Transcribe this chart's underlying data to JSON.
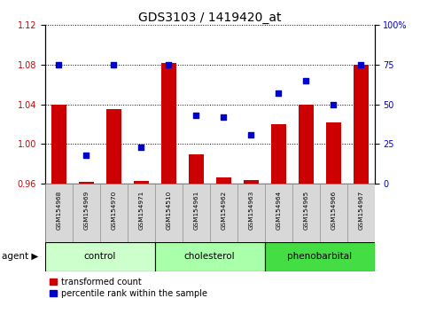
{
  "title": "GDS3103 / 1419420_at",
  "samples": [
    "GSM154968",
    "GSM154969",
    "GSM154970",
    "GSM154971",
    "GSM154510",
    "GSM154961",
    "GSM154962",
    "GSM154963",
    "GSM154964",
    "GSM154965",
    "GSM154966",
    "GSM154967"
  ],
  "groups": [
    {
      "name": "control",
      "color": "#ccffcc",
      "indices": [
        0,
        1,
        2,
        3
      ]
    },
    {
      "name": "cholesterol",
      "color": "#aaffaa",
      "indices": [
        4,
        5,
        6,
        7
      ]
    },
    {
      "name": "phenobarbital",
      "color": "#44dd44",
      "indices": [
        8,
        9,
        10,
        11
      ]
    }
  ],
  "bar_values": [
    1.04,
    0.962,
    1.035,
    0.963,
    1.082,
    0.99,
    0.966,
    0.964,
    1.02,
    1.04,
    1.022,
    1.08
  ],
  "percentile_values": [
    75,
    18,
    75,
    23,
    75,
    43,
    42,
    31,
    57,
    65,
    50,
    75
  ],
  "ylim_left": [
    0.96,
    1.12
  ],
  "ylim_right": [
    0,
    100
  ],
  "yticks_left": [
    0.96,
    1.0,
    1.04,
    1.08,
    1.12
  ],
  "yticks_right": [
    0,
    25,
    50,
    75,
    100
  ],
  "bar_color": "#cc0000",
  "dot_color": "#0000cc",
  "bg_color": "#ffffff",
  "grid_color": "#000000",
  "title_fontsize": 10,
  "tick_fontsize": 7,
  "label_fontsize": 7.5
}
